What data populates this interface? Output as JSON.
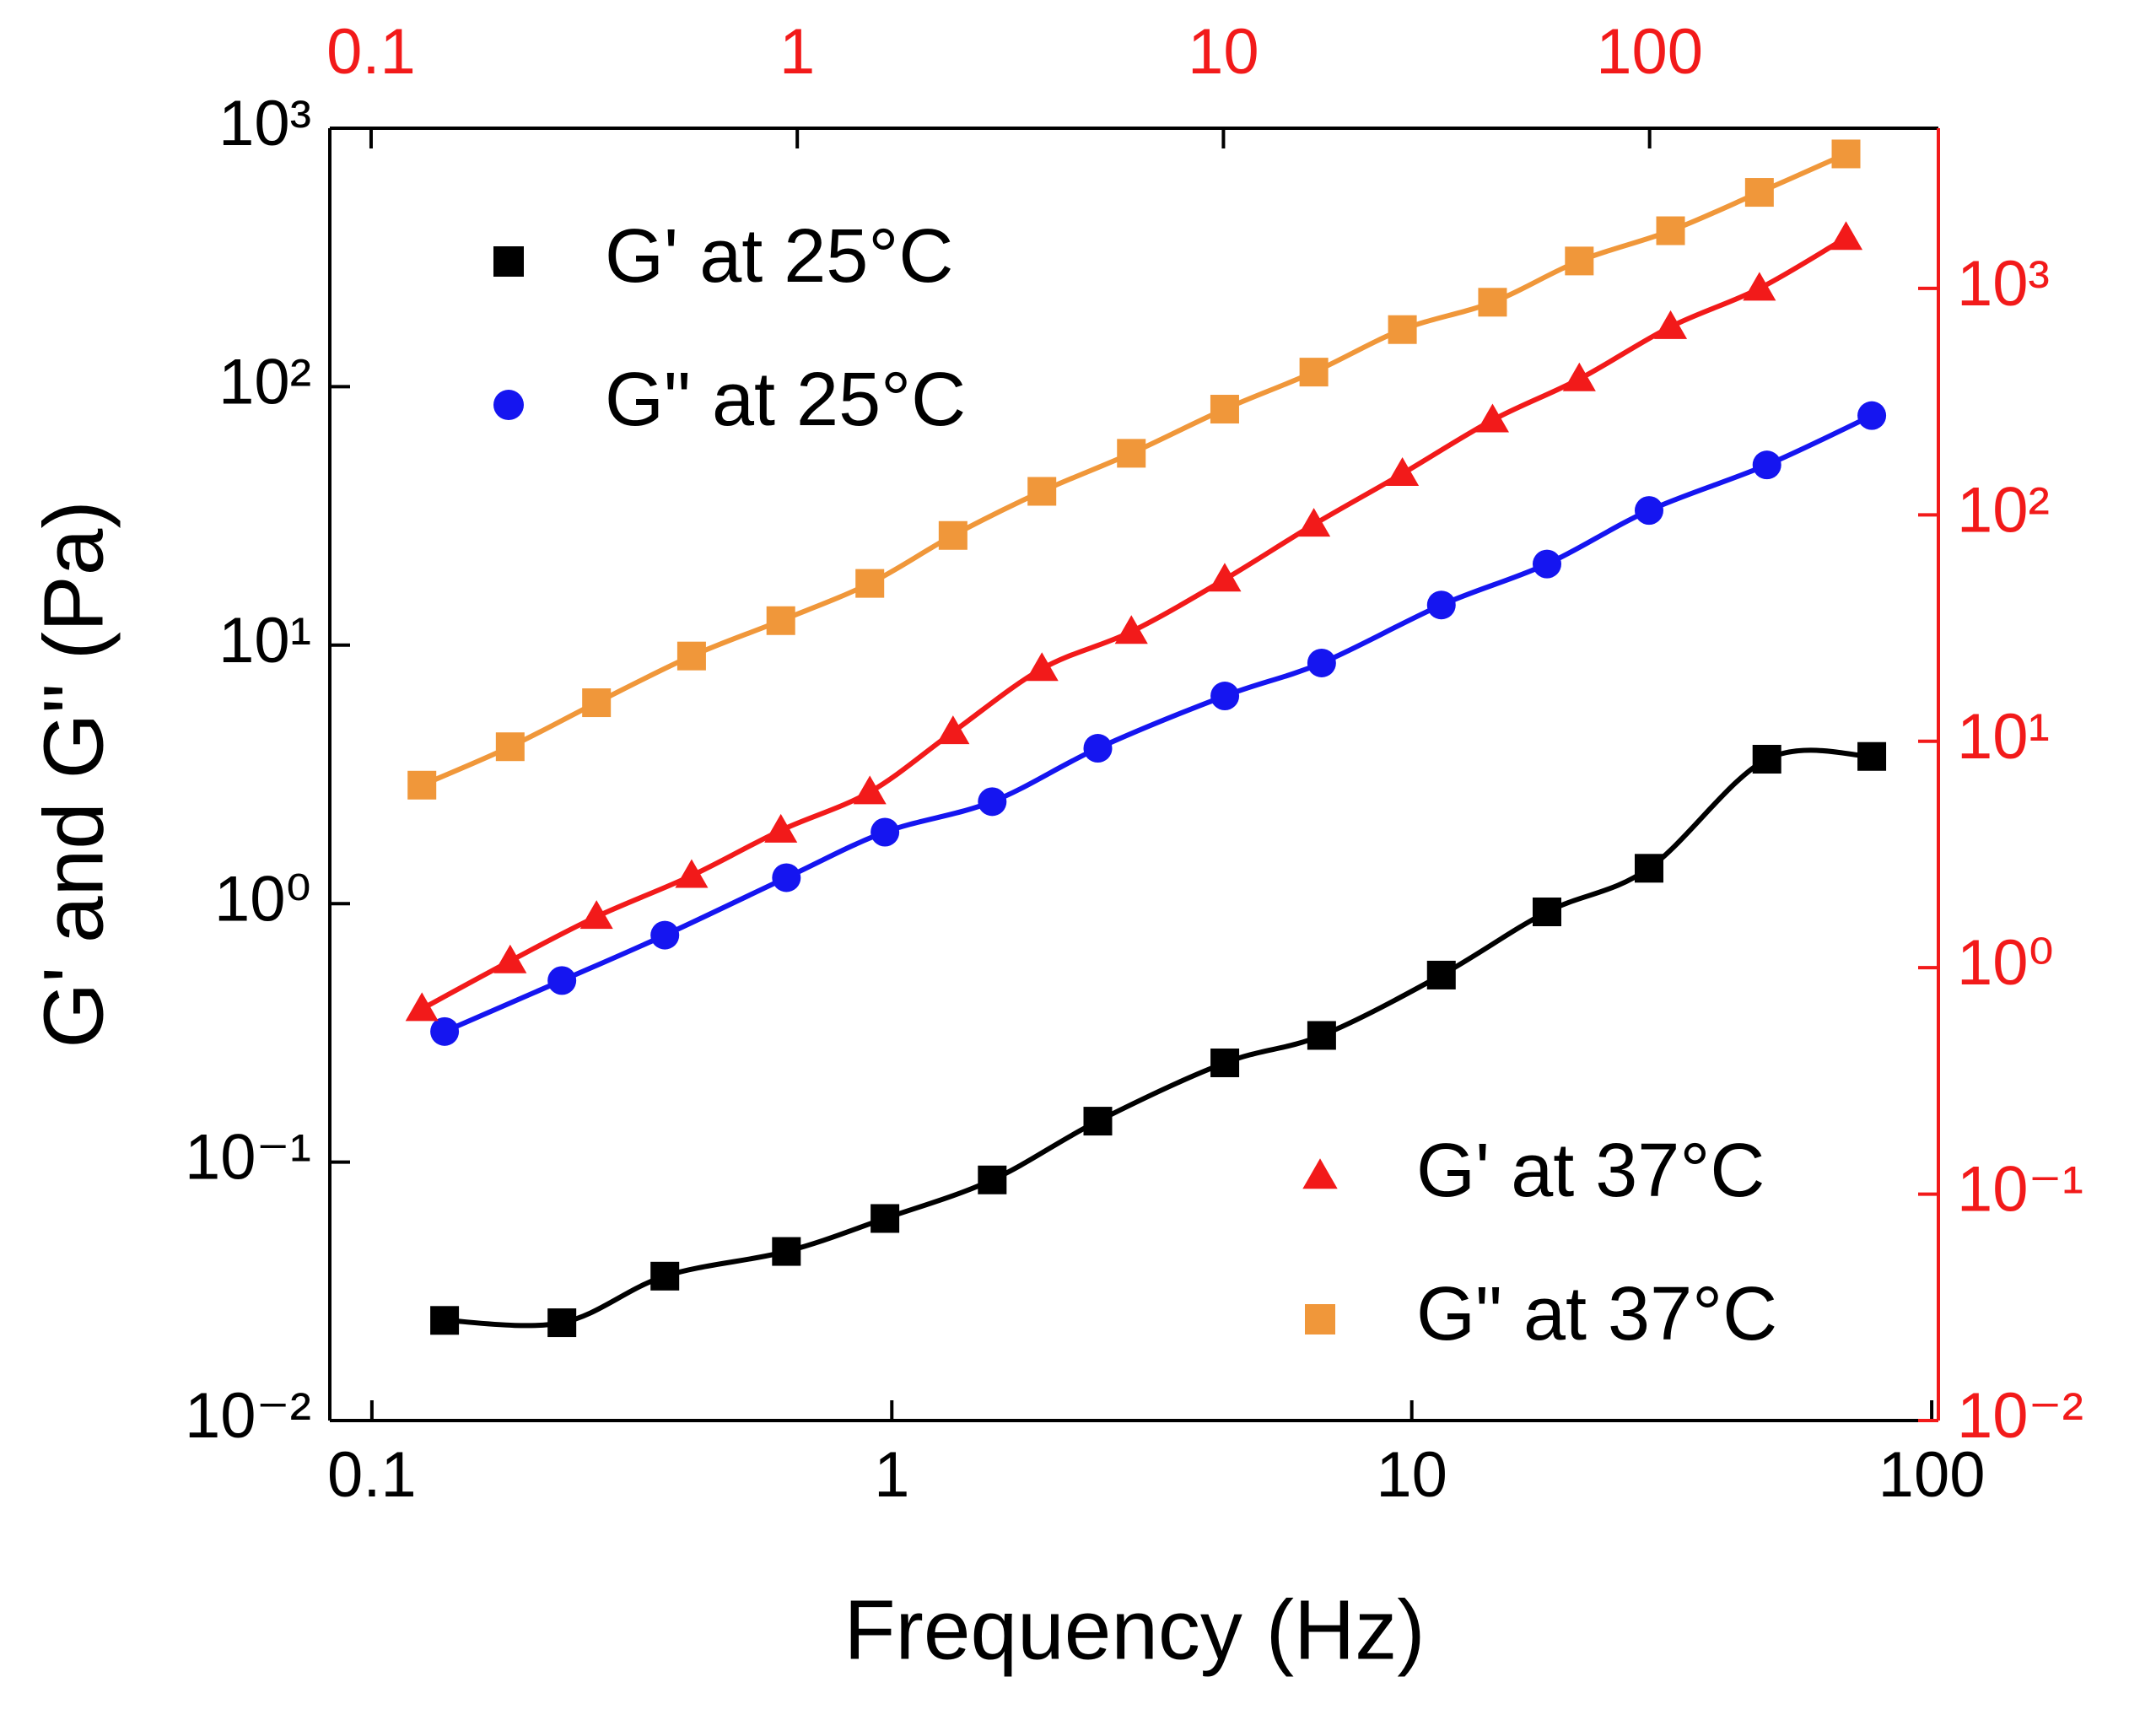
{
  "chart_data": {
    "type": "scatter",
    "x_label": "Frequency (Hz)",
    "y_label": "G' and G\" (Pa)",
    "xscale": "log",
    "yscale": "log",
    "xlim": [
      0.083,
      103
    ],
    "xticks": [
      0.1,
      1,
      10,
      100
    ],
    "ylim": [
      0.01,
      1000
    ],
    "yticks": [
      {
        "value": 0.01,
        "label": "10⁻²"
      },
      {
        "value": 0.1,
        "label": "10⁻¹"
      },
      {
        "value": 1,
        "label": "10⁰"
      },
      {
        "value": 10,
        "label": "10¹"
      },
      {
        "value": 100,
        "label": "10²"
      },
      {
        "value": 1000,
        "label": "10³"
      }
    ],
    "x2lim": [
      0.08,
      476
    ],
    "x2ticks": [
      0.1,
      1,
      10,
      100
    ],
    "y2lim": [
      0.01,
      5100
    ],
    "y2ticks": [
      {
        "value": 0.01,
        "label": "10⁻²"
      },
      {
        "value": 0.1,
        "label": "10⁻¹"
      },
      {
        "value": 1,
        "label": "10⁰"
      },
      {
        "value": 10,
        "label": "10¹"
      },
      {
        "value": 100,
        "label": "10²"
      },
      {
        "value": 1000,
        "label": "10³"
      }
    ],
    "secondary_axis_color": "#f21a1a",
    "series": [
      {
        "name": "G' at 25°C",
        "color": "#000000",
        "marker": "square",
        "legend": "upper left",
        "x": [
          0.138,
          0.232,
          0.366,
          0.627,
          0.97,
          1.56,
          2.49,
          4.37,
          6.71,
          11.4,
          18.2,
          28.6,
          48.2,
          76.7
        ],
        "values": [
          0.0244,
          0.0239,
          0.0362,
          0.0451,
          0.0605,
          0.0853,
          0.144,
          0.242,
          0.309,
          0.529,
          0.929,
          1.37,
          3.62,
          3.71
        ]
      },
      {
        "name": "G\" at 25°C",
        "color": "#1515f0",
        "marker": "circle",
        "legend": "upper left",
        "x": [
          0.138,
          0.232,
          0.366,
          0.627,
          0.97,
          1.56,
          2.49,
          4.37,
          6.71,
          11.4,
          18.2,
          28.6,
          48.2,
          76.7
        ],
        "values": [
          0.32,
          0.504,
          0.755,
          1.26,
          1.89,
          2.48,
          3.99,
          6.36,
          8.53,
          14.3,
          20.6,
          33.2,
          49.8,
          77.3
        ]
      },
      {
        "name": "G' at 37°C",
        "color": "#f21a1a",
        "marker": "triangle",
        "legend": "lower right",
        "axis": "y2",
        "xaxis": "x2",
        "x": [
          0.1316,
          0.212,
          0.338,
          0.565,
          0.915,
          1.48,
          2.32,
          3.75,
          6.08,
          10.07,
          16.3,
          26.3,
          42.8,
          68.4,
          112,
          181,
          289
        ],
        "values": [
          0.658,
          1.07,
          1.68,
          2.55,
          4.04,
          5.97,
          11.0,
          20.9,
          30.5,
          51.9,
          90.7,
          152,
          262,
          398,
          677,
          1000,
          1675
        ]
      },
      {
        "name": "G\" at 37°C",
        "color": "#f0973a",
        "marker": "square",
        "legend": "lower right",
        "axis": "y2",
        "xaxis": "x2",
        "x": [
          0.1316,
          0.212,
          0.338,
          0.565,
          0.915,
          1.48,
          2.32,
          3.75,
          6.08,
          10.07,
          16.3,
          26.3,
          42.8,
          68.4,
          112,
          181,
          289
        ],
        "values": [
          6.4,
          9.46,
          14.8,
          23.8,
          34.1,
          49.8,
          81.1,
          127,
          187,
          293,
          427,
          658,
          869,
          1322,
          1798,
          2656,
          3927
        ]
      }
    ]
  }
}
